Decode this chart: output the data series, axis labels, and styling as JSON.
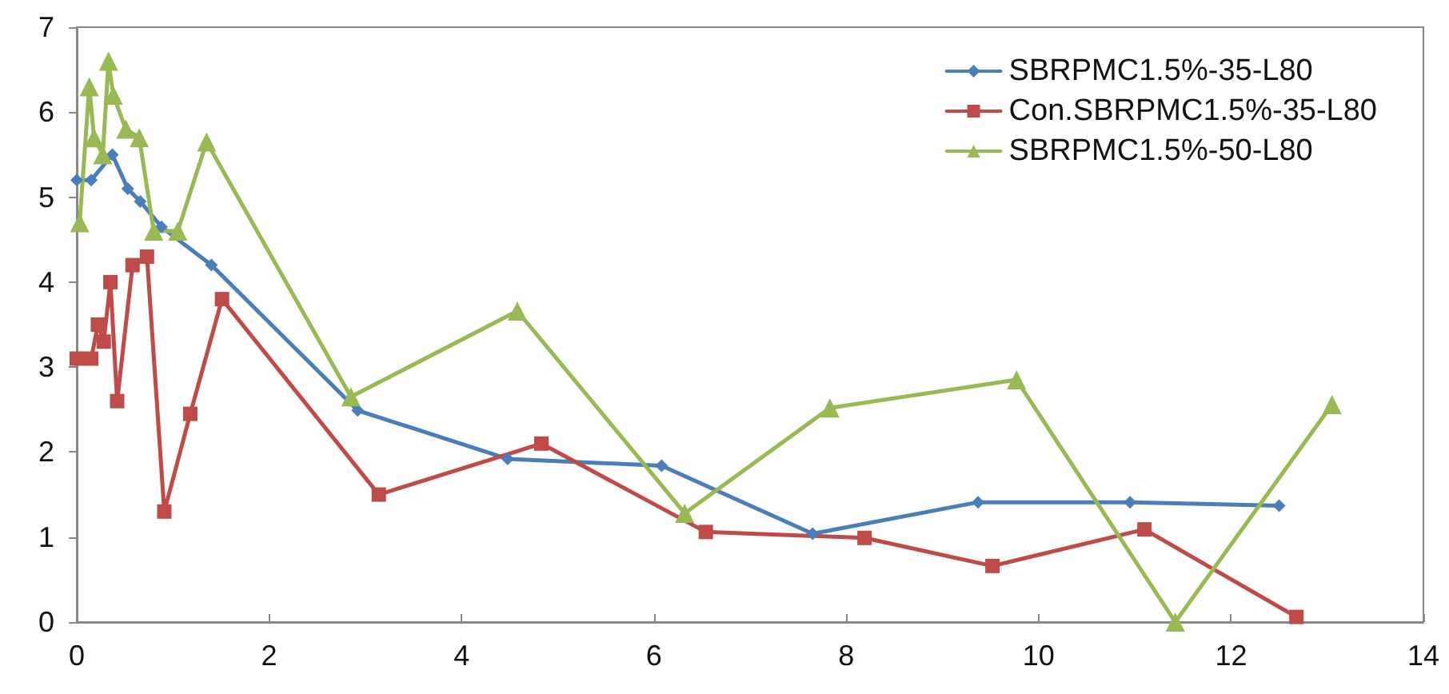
{
  "chart_data": {
    "type": "line",
    "xlim": [
      0,
      14
    ],
    "xticks": [
      0,
      2,
      4,
      6,
      8,
      10,
      12,
      14
    ],
    "ylim": [
      0,
      7
    ],
    "yticks": [
      0,
      1,
      2,
      3,
      4,
      5,
      6,
      7
    ],
    "grid": false,
    "legend": "top right",
    "line_style": "solid",
    "series": [
      {
        "name": "SBRPMC1.5%-35-L80",
        "color": "#4a7ebb",
        "marker": "diamond",
        "x": [
          0,
          0.15,
          0.37,
          0.53,
          0.66,
          0.88,
          1.4,
          2.92,
          4.48,
          6.08,
          7.65,
          9.37,
          10.95,
          12.5
        ],
        "values": [
          5.2,
          5.2,
          5.5,
          5.1,
          4.95,
          4.65,
          4.2,
          2.49,
          1.92,
          1.84,
          1.04,
          1.41,
          1.41,
          1.37
        ]
      },
      {
        "name": "Con.SBRPMC1.5%-35-L80",
        "color": "#be4b48",
        "marker": "square",
        "x": [
          0,
          0.15,
          0.22,
          0.28,
          0.35,
          0.42,
          0.58,
          0.73,
          0.91,
          1.18,
          1.51,
          3.14,
          4.83,
          6.54,
          8.19,
          9.52,
          11.1,
          12.68
        ],
        "values": [
          3.1,
          3.1,
          3.5,
          3.3,
          4.0,
          2.6,
          4.2,
          4.3,
          1.3,
          2.45,
          3.8,
          1.5,
          2.1,
          1.06,
          0.99,
          0.66,
          1.09,
          0.06
        ]
      },
      {
        "name": "SBRPMC1.5%-50-L80",
        "color": "#98b954",
        "marker": "triangle",
        "x": [
          0.03,
          0.13,
          0.18,
          0.27,
          0.33,
          0.38,
          0.51,
          0.65,
          0.8,
          1.05,
          1.35,
          2.85,
          4.58,
          6.32,
          7.83,
          9.77,
          11.42,
          13.05
        ],
        "values": [
          4.7,
          6.3,
          5.7,
          5.5,
          6.6,
          6.2,
          5.8,
          5.7,
          4.6,
          4.6,
          5.65,
          2.65,
          3.66,
          1.28,
          2.52,
          2.85,
          0,
          2.56
        ]
      }
    ]
  }
}
